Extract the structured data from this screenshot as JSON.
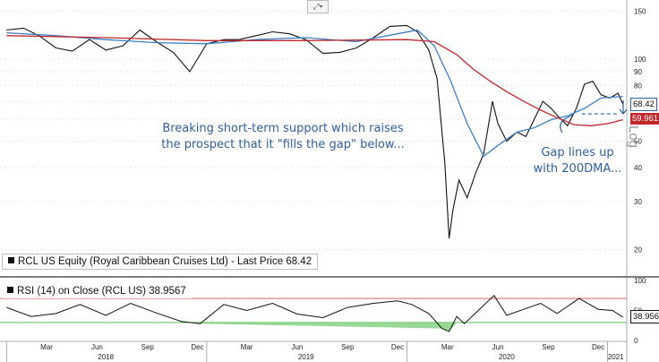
{
  "chart_data": [
    {
      "type": "line",
      "title": "",
      "scale": "log",
      "scale_label": "Log",
      "ylim": [
        17,
        160
      ],
      "y_ticks": [
        150,
        100,
        90,
        80,
        70,
        60,
        50,
        40,
        30,
        20
      ],
      "last_price_label": "68.42",
      "ma_label": "59.961",
      "series": [
        {
          "name": "RCL US Equity (Royal Caribbean Cruises Ltd) - Last Price",
          "last_value": 68.42,
          "color": "#111111",
          "points": [
            [
              "2018-01-01",
              128
            ],
            [
              "2018-02-01",
              130
            ],
            [
              "2018-03-01",
              122
            ],
            [
              "2018-04-01",
              110
            ],
            [
              "2018-05-01",
              107
            ],
            [
              "2018-06-01",
              118
            ],
            [
              "2018-07-01",
              108
            ],
            [
              "2018-08-01",
              112
            ],
            [
              "2018-09-01",
              128
            ],
            [
              "2018-10-01",
              116
            ],
            [
              "2018-11-01",
              106
            ],
            [
              "2018-12-01",
              90
            ],
            [
              "2019-01-01",
              114
            ],
            [
              "2019-02-01",
              118
            ],
            [
              "2019-03-01",
              118
            ],
            [
              "2019-04-01",
              122
            ],
            [
              "2019-05-01",
              126
            ],
            [
              "2019-06-01",
              124
            ],
            [
              "2019-07-01",
              118
            ],
            [
              "2019-08-01",
              105
            ],
            [
              "2019-09-01",
              106
            ],
            [
              "2019-10-01",
              110
            ],
            [
              "2019-11-01",
              120
            ],
            [
              "2019-12-01",
              132
            ],
            [
              "2020-01-01",
              133
            ],
            [
              "2020-01-20",
              126
            ],
            [
              "2020-02-10",
              108
            ],
            [
              "2020-02-25",
              85
            ],
            [
              "2020-03-10",
              42
            ],
            [
              "2020-03-18",
              22
            ],
            [
              "2020-03-25",
              28
            ],
            [
              "2020-04-05",
              36
            ],
            [
              "2020-04-20",
              31
            ],
            [
              "2020-05-05",
              38
            ],
            [
              "2020-05-20",
              45
            ],
            [
              "2020-06-05",
              70
            ],
            [
              "2020-06-15",
              58
            ],
            [
              "2020-07-01",
              50
            ],
            [
              "2020-07-20",
              54
            ],
            [
              "2020-08-05",
              52
            ],
            [
              "2020-08-20",
              60
            ],
            [
              "2020-09-05",
              70
            ],
            [
              "2020-09-20",
              66
            ],
            [
              "2020-10-05",
              61
            ],
            [
              "2020-10-20",
              57
            ],
            [
              "2020-11-05",
              66
            ],
            [
              "2020-11-20",
              81
            ],
            [
              "2020-12-05",
              83
            ],
            [
              "2020-12-20",
              74
            ],
            [
              "2021-01-05",
              72
            ],
            [
              "2021-01-20",
              75
            ],
            [
              "2021-01-29",
              68.42
            ]
          ]
        },
        {
          "name": "50DMA",
          "color": "#3d7fc4",
          "points": [
            [
              "2018-01-01",
              125
            ],
            [
              "2018-04-01",
              122
            ],
            [
              "2018-07-01",
              118
            ],
            [
              "2018-10-01",
              115
            ],
            [
              "2019-01-01",
              114
            ],
            [
              "2019-04-01",
              118
            ],
            [
              "2019-07-01",
              120
            ],
            [
              "2019-10-01",
              116
            ],
            [
              "2019-12-15",
              124
            ],
            [
              "2020-01-20",
              128
            ],
            [
              "2020-02-20",
              112
            ],
            [
              "2020-03-20",
              84
            ],
            [
              "2020-04-20",
              58
            ],
            [
              "2020-05-20",
              44
            ],
            [
              "2020-06-20",
              49
            ],
            [
              "2020-07-20",
              54
            ],
            [
              "2020-08-20",
              56
            ],
            [
              "2020-09-20",
              60
            ],
            [
              "2020-10-20",
              62
            ],
            [
              "2020-11-20",
              66
            ],
            [
              "2020-12-20",
              72
            ],
            [
              "2021-01-29",
              73
            ]
          ]
        },
        {
          "name": "200DMA",
          "color": "#c0282e",
          "last_value": 59.961,
          "points": [
            [
              "2018-01-01",
              122
            ],
            [
              "2018-07-01",
              120
            ],
            [
              "2019-01-01",
              117
            ],
            [
              "2019-07-01",
              117
            ],
            [
              "2020-01-01",
              118
            ],
            [
              "2020-02-20",
              116
            ],
            [
              "2020-04-01",
              104
            ],
            [
              "2020-05-01",
              92
            ],
            [
              "2020-06-01",
              83
            ],
            [
              "2020-07-01",
              76
            ],
            [
              "2020-08-01",
              70
            ],
            [
              "2020-09-01",
              65
            ],
            [
              "2020-10-01",
              61
            ],
            [
              "2020-11-01",
              57.5
            ],
            [
              "2020-12-01",
              57
            ],
            [
              "2021-01-01",
              58
            ],
            [
              "2021-01-29",
              59.961
            ]
          ]
        }
      ],
      "annotations": [
        {
          "text": "Breaking short-term support which raises the prospect that it \"fills the gap\" below..."
        },
        {
          "text": "Gap lines up with 200DMA..."
        }
      ],
      "gap_level": 63
    },
    {
      "type": "line",
      "title": "",
      "ylim": [
        0,
        100
      ],
      "y_ticks": [
        100,
        50,
        0
      ],
      "overbought": 70,
      "oversold": 30,
      "last_value_label": "38.9567",
      "series": [
        {
          "name": "RSI (14) on Close (RCL US) 38.9567",
          "last_value": 38.9567,
          "color": "#111111",
          "points": [
            [
              "2018-01-01",
              55
            ],
            [
              "2018-02-15",
              40
            ],
            [
              "2018-04-01",
              45
            ],
            [
              "2018-05-15",
              60
            ],
            [
              "2018-07-01",
              42
            ],
            [
              "2018-08-15",
              62
            ],
            [
              "2018-10-01",
              46
            ],
            [
              "2018-11-15",
              32
            ],
            [
              "2018-12-20",
              28
            ],
            [
              "2019-02-01",
              60
            ],
            [
              "2019-03-15",
              50
            ],
            [
              "2019-05-01",
              62
            ],
            [
              "2019-06-15",
              44
            ],
            [
              "2019-08-01",
              38
            ],
            [
              "2019-09-15",
              55
            ],
            [
              "2019-11-01",
              62
            ],
            [
              "2019-12-15",
              66
            ],
            [
              "2020-01-10",
              60
            ],
            [
              "2020-02-10",
              45
            ],
            [
              "2020-03-05",
              20
            ],
            [
              "2020-03-18",
              15
            ],
            [
              "2020-04-01",
              40
            ],
            [
              "2020-04-15",
              28
            ],
            [
              "2020-05-01",
              42
            ],
            [
              "2020-06-08",
              75
            ],
            [
              "2020-07-01",
              42
            ],
            [
              "2020-08-01",
              52
            ],
            [
              "2020-09-01",
              62
            ],
            [
              "2020-10-01",
              45
            ],
            [
              "2020-11-10",
              70
            ],
            [
              "2020-12-15",
              52
            ],
            [
              "2021-01-10",
              50
            ],
            [
              "2021-01-29",
              38.9567
            ]
          ]
        }
      ]
    }
  ],
  "x_axis": {
    "months": [
      "Mar",
      "Jun",
      "Sep",
      "Dec",
      "Mar",
      "Jun",
      "Sep",
      "Dec",
      "Mar",
      "Jun",
      "Sep",
      "Dec"
    ],
    "years": [
      "2018",
      "2019",
      "2020",
      "2021"
    ]
  },
  "legend": {
    "main": "RCL US Equity (Royal Caribbean Cruises Ltd) - Last Price 68.42",
    "rsi": "RSI (14)  on Close (RCL US) 38.9567"
  },
  "colors": {
    "price": "#111111",
    "ma50": "#3d7fc4",
    "ma200": "#c0282e",
    "rsi_green": "#3fb43f",
    "annotation": "#2f5f9e",
    "price_tag": "#2e5fa3"
  }
}
